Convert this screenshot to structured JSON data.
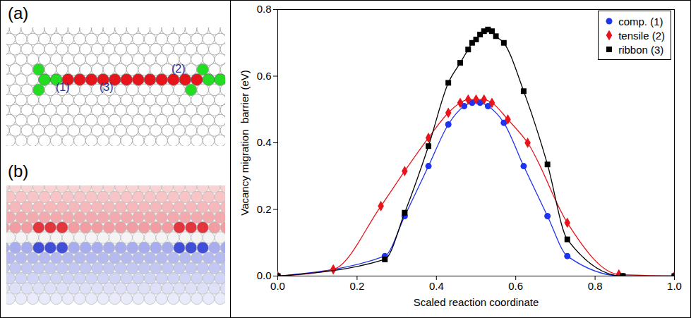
{
  "diagram": {
    "panel_a": {
      "label": "(a)",
      "sites": [
        "(1)",
        "(2)",
        "(3)"
      ]
    },
    "panel_b": {
      "label": "(b)"
    }
  },
  "chart_data": {
    "type": "line",
    "x_label": "Scaled reaction coordinate",
    "y_label": "Vacancy migration  barrier (eV)",
    "xlim": [
      0,
      1
    ],
    "ylim": [
      0,
      0.8
    ],
    "xticks": [
      0,
      0.2,
      0.4,
      0.6,
      0.8,
      1
    ],
    "yticks": [
      0,
      0.2,
      0.4,
      0.6,
      0.8
    ],
    "legend": "top-right",
    "series": [
      {
        "name": "comp. (1)",
        "color": "#1f32f0",
        "marker": "circle",
        "x": [
          0,
          0.27,
          0.32,
          0.38,
          0.43,
          0.47,
          0.49,
          0.51,
          0.53,
          0.57,
          0.62,
          0.68,
          0.73,
          0.87,
          1
        ],
        "values": [
          0,
          0.06,
          0.18,
          0.33,
          0.455,
          0.51,
          0.52,
          0.52,
          0.51,
          0.46,
          0.33,
          0.18,
          0.06,
          0,
          0
        ]
      },
      {
        "name": "tensile (2)",
        "color": "#e8141c",
        "marker": "diamond",
        "x": [
          0,
          0.14,
          0.26,
          0.32,
          0.38,
          0.43,
          0.46,
          0.48,
          0.5,
          0.52,
          0.54,
          0.58,
          0.63,
          0.73,
          0.86,
          1
        ],
        "values": [
          0,
          0.02,
          0.21,
          0.315,
          0.415,
          0.49,
          0.52,
          0.53,
          0.53,
          0.53,
          0.52,
          0.47,
          0.4,
          0.16,
          0.005,
          0
        ]
      },
      {
        "name": "ribbon (3)",
        "color": "#000000",
        "marker": "square",
        "x": [
          0,
          0.27,
          0.32,
          0.38,
          0.43,
          0.46,
          0.48,
          0.49,
          0.5,
          0.51,
          0.52,
          0.53,
          0.54,
          0.55,
          0.57,
          0.62,
          0.68,
          0.73,
          0.87,
          1
        ],
        "values": [
          0,
          0.05,
          0.19,
          0.39,
          0.58,
          0.64,
          0.68,
          0.7,
          0.71,
          0.725,
          0.735,
          0.74,
          0.735,
          0.72,
          0.7,
          0.555,
          0.335,
          0.11,
          0,
          0
        ]
      }
    ]
  }
}
